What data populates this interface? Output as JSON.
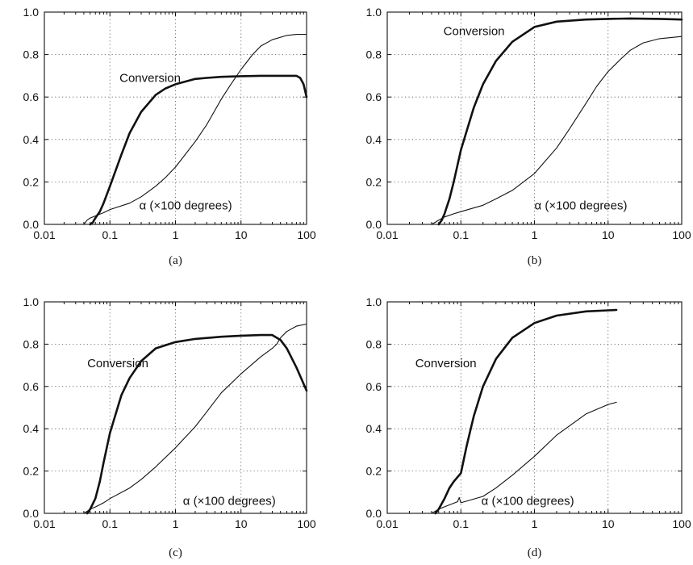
{
  "colors": {
    "ink": "#111111",
    "grid": "#555555",
    "background": "#ffffff"
  },
  "chart_data": [
    {
      "id": "a",
      "type": "line",
      "caption": "(a)",
      "xscale": "log",
      "xlim": [
        0.01,
        100
      ],
      "ylim": [
        0,
        1
      ],
      "grid": true,
      "xtick_labels": [
        "0.01",
        "0.1",
        "1",
        "10",
        "100"
      ],
      "ytick_labels": [
        "0.0",
        "0.2",
        "0.4",
        "0.6",
        "0.8",
        "1.0"
      ],
      "series": [
        {
          "name": "Conversion",
          "style": "thick",
          "label_pos": [
            0.14,
            0.69
          ],
          "points": [
            [
              0.05,
              0
            ],
            [
              0.055,
              0.01
            ],
            [
              0.06,
              0.03
            ],
            [
              0.07,
              0.06
            ],
            [
              0.08,
              0.1
            ],
            [
              0.1,
              0.18
            ],
            [
              0.15,
              0.33
            ],
            [
              0.2,
              0.43
            ],
            [
              0.3,
              0.53
            ],
            [
              0.5,
              0.61
            ],
            [
              0.7,
              0.64
            ],
            [
              1,
              0.66
            ],
            [
              2,
              0.685
            ],
            [
              3,
              0.69
            ],
            [
              5,
              0.695
            ],
            [
              10,
              0.698
            ],
            [
              20,
              0.7
            ],
            [
              50,
              0.7
            ],
            [
              70,
              0.7
            ],
            [
              80,
              0.69
            ],
            [
              90,
              0.66
            ],
            [
              100,
              0.6
            ]
          ]
        },
        {
          "name": "α (×100 degrees)",
          "style": "thin",
          "label_pos": [
            0.28,
            0.09
          ],
          "points": [
            [
              0.04,
              0
            ],
            [
              0.045,
              0.02
            ],
            [
              0.05,
              0.03
            ],
            [
              0.06,
              0.04
            ],
            [
              0.08,
              0.055
            ],
            [
              0.1,
              0.07
            ],
            [
              0.2,
              0.1
            ],
            [
              0.3,
              0.13
            ],
            [
              0.5,
              0.18
            ],
            [
              0.7,
              0.22
            ],
            [
              1,
              0.27
            ],
            [
              2,
              0.39
            ],
            [
              3,
              0.47
            ],
            [
              5,
              0.59
            ],
            [
              7,
              0.66
            ],
            [
              10,
              0.73
            ],
            [
              15,
              0.8
            ],
            [
              20,
              0.84
            ],
            [
              30,
              0.87
            ],
            [
              50,
              0.89
            ],
            [
              70,
              0.895
            ],
            [
              100,
              0.895
            ]
          ]
        }
      ]
    },
    {
      "id": "b",
      "type": "line",
      "caption": "(b)",
      "xscale": "log",
      "xlim": [
        0.01,
        100
      ],
      "ylim": [
        0,
        1
      ],
      "grid": true,
      "xtick_labels": [
        "0.01",
        "0.1",
        "1",
        "10",
        "100"
      ],
      "ytick_labels": [
        "0.0",
        "0.2",
        "0.4",
        "0.6",
        "0.8",
        "1.0"
      ],
      "series": [
        {
          "name": "Conversion",
          "style": "thick",
          "label_pos": [
            0.058,
            0.91
          ],
          "points": [
            [
              0.05,
              0
            ],
            [
              0.055,
              0.02
            ],
            [
              0.06,
              0.05
            ],
            [
              0.07,
              0.12
            ],
            [
              0.08,
              0.2
            ],
            [
              0.1,
              0.35
            ],
            [
              0.15,
              0.55
            ],
            [
              0.2,
              0.66
            ],
            [
              0.3,
              0.77
            ],
            [
              0.5,
              0.86
            ],
            [
              1,
              0.93
            ],
            [
              2,
              0.955
            ],
            [
              5,
              0.965
            ],
            [
              10,
              0.968
            ],
            [
              20,
              0.97
            ],
            [
              50,
              0.968
            ],
            [
              100,
              0.965
            ]
          ]
        },
        {
          "name": "α (×100 degrees)",
          "style": "thin",
          "label_pos": [
            1.0,
            0.09
          ],
          "points": [
            [
              0.04,
              0
            ],
            [
              0.045,
              0.01
            ],
            [
              0.05,
              0.02
            ],
            [
              0.06,
              0.035
            ],
            [
              0.08,
              0.05
            ],
            [
              0.1,
              0.06
            ],
            [
              0.2,
              0.09
            ],
            [
              0.3,
              0.12
            ],
            [
              0.5,
              0.16
            ],
            [
              1,
              0.24
            ],
            [
              2,
              0.36
            ],
            [
              3,
              0.45
            ],
            [
              5,
              0.57
            ],
            [
              7,
              0.65
            ],
            [
              10,
              0.72
            ],
            [
              15,
              0.78
            ],
            [
              20,
              0.82
            ],
            [
              30,
              0.855
            ],
            [
              50,
              0.875
            ],
            [
              100,
              0.885
            ]
          ]
        }
      ]
    },
    {
      "id": "c",
      "type": "line",
      "caption": "(c)",
      "xscale": "log",
      "xlim": [
        0.01,
        100
      ],
      "ylim": [
        0,
        1
      ],
      "grid": true,
      "xtick_labels": [
        "0.01",
        "0.1",
        "1",
        "10",
        "100"
      ],
      "ytick_labels": [
        "0.0",
        "0.2",
        "0.4",
        "0.6",
        "0.8",
        "1.0"
      ],
      "series": [
        {
          "name": "Conversion",
          "style": "thick",
          "label_pos": [
            0.045,
            0.71
          ],
          "points": [
            [
              0.045,
              0
            ],
            [
              0.05,
              0.02
            ],
            [
              0.06,
              0.07
            ],
            [
              0.07,
              0.15
            ],
            [
              0.08,
              0.24
            ],
            [
              0.1,
              0.38
            ],
            [
              0.15,
              0.56
            ],
            [
              0.2,
              0.64
            ],
            [
              0.3,
              0.72
            ],
            [
              0.5,
              0.78
            ],
            [
              1,
              0.81
            ],
            [
              2,
              0.825
            ],
            [
              5,
              0.835
            ],
            [
              10,
              0.84
            ],
            [
              20,
              0.843
            ],
            [
              30,
              0.843
            ],
            [
              40,
              0.82
            ],
            [
              50,
              0.78
            ],
            [
              70,
              0.69
            ],
            [
              85,
              0.63
            ],
            [
              100,
              0.58
            ]
          ]
        },
        {
          "name": "α (×100 degrees)",
          "style": "thin",
          "label_pos": [
            1.3,
            0.06
          ],
          "points": [
            [
              0.04,
              0
            ],
            [
              0.045,
              0.01
            ],
            [
              0.05,
              0.02
            ],
            [
              0.06,
              0.03
            ],
            [
              0.08,
              0.05
            ],
            [
              0.1,
              0.07
            ],
            [
              0.2,
              0.12
            ],
            [
              0.3,
              0.16
            ],
            [
              0.5,
              0.22
            ],
            [
              1,
              0.31
            ],
            [
              2,
              0.41
            ],
            [
              3,
              0.48
            ],
            [
              5,
              0.57
            ],
            [
              10,
              0.66
            ],
            [
              20,
              0.74
            ],
            [
              30,
              0.78
            ],
            [
              35,
              0.8
            ],
            [
              40,
              0.83
            ],
            [
              50,
              0.86
            ],
            [
              70,
              0.885
            ],
            [
              100,
              0.895
            ]
          ]
        }
      ]
    },
    {
      "id": "d",
      "type": "line",
      "caption": "(d)",
      "xscale": "log",
      "xlim": [
        0.01,
        100
      ],
      "ylim": [
        0,
        1
      ],
      "grid": true,
      "xtick_labels": [
        "0.01",
        "0.1",
        "1",
        "10",
        "100"
      ],
      "ytick_labels": [
        "0.0",
        "0.2",
        "0.4",
        "0.6",
        "0.8",
        "1.0"
      ],
      "series": [
        {
          "name": "Conversion",
          "style": "thick",
          "label_pos": [
            0.024,
            0.71
          ],
          "points": [
            [
              0.045,
              0
            ],
            [
              0.05,
              0.02
            ],
            [
              0.06,
              0.07
            ],
            [
              0.07,
              0.12
            ],
            [
              0.08,
              0.15
            ],
            [
              0.1,
              0.19
            ],
            [
              0.12,
              0.32
            ],
            [
              0.15,
              0.46
            ],
            [
              0.2,
              0.6
            ],
            [
              0.3,
              0.73
            ],
            [
              0.5,
              0.83
            ],
            [
              1,
              0.9
            ],
            [
              2,
              0.935
            ],
            [
              5,
              0.955
            ],
            [
              10,
              0.96
            ],
            [
              13,
              0.962
            ]
          ]
        },
        {
          "name": "α (×100 degrees)",
          "style": "thin",
          "label_pos": [
            0.19,
            0.06
          ],
          "points": [
            [
              0.04,
              0
            ],
            [
              0.045,
              0.01
            ],
            [
              0.05,
              0.02
            ],
            [
              0.07,
              0.04
            ],
            [
              0.09,
              0.055
            ],
            [
              0.095,
              0.075
            ],
            [
              0.1,
              0.05
            ],
            [
              0.2,
              0.08
            ],
            [
              0.3,
              0.12
            ],
            [
              0.5,
              0.18
            ],
            [
              1,
              0.27
            ],
            [
              2,
              0.37
            ],
            [
              5,
              0.47
            ],
            [
              10,
              0.515
            ],
            [
              13,
              0.525
            ]
          ]
        }
      ]
    }
  ]
}
